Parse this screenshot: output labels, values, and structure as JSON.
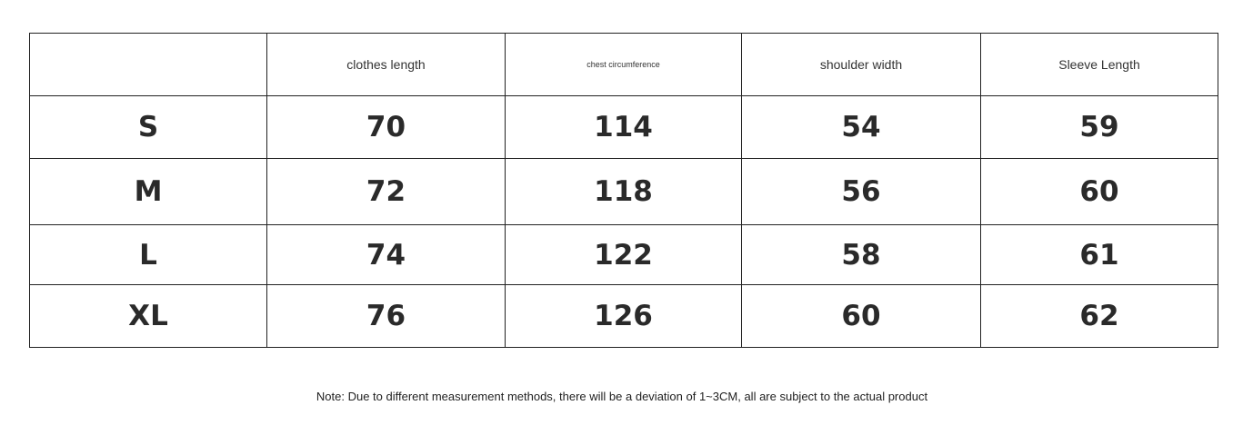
{
  "table": {
    "headers": [
      "",
      "clothes length",
      "chest circumference",
      "shoulder width",
      "Sleeve Length"
    ],
    "rows": [
      [
        "S",
        "70",
        "114",
        "54",
        "59"
      ],
      [
        "M",
        "72",
        "118",
        "56",
        "60"
      ],
      [
        "L",
        "74",
        "122",
        "58",
        "61"
      ],
      [
        "XL",
        "76",
        "126",
        "60",
        "62"
      ]
    ]
  },
  "note": "Note: Due to different measurement methods, there will be a deviation of 1~3CM, all are subject to the actual product"
}
